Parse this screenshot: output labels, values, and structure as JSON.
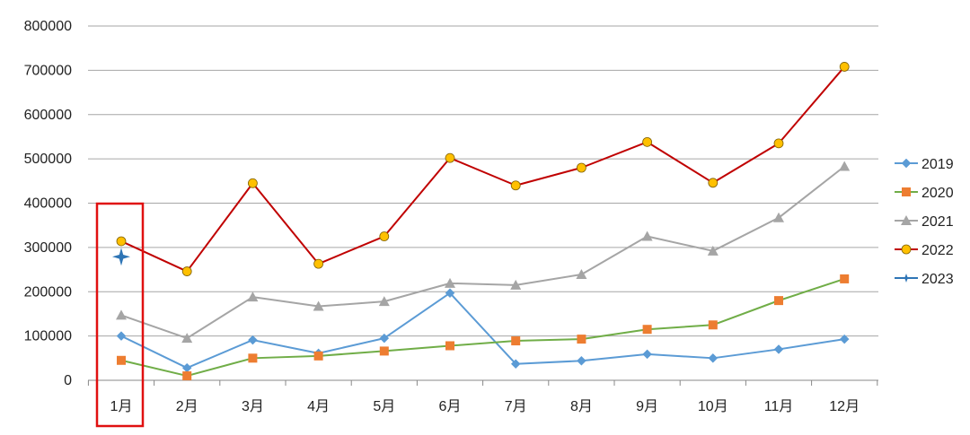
{
  "chart_data": {
    "type": "line",
    "categories": [
      "1月",
      "2月",
      "3月",
      "4月",
      "5月",
      "6月",
      "7月",
      "8月",
      "9月",
      "10月",
      "11月",
      "12月"
    ],
    "ylim": [
      0,
      800000
    ],
    "yticks": [
      0,
      100000,
      200000,
      300000,
      400000,
      500000,
      600000,
      700000,
      800000
    ],
    "ytick_labels": [
      "0",
      "100000",
      "200000",
      "300000",
      "400000",
      "500000",
      "600000",
      "700000",
      "800000"
    ],
    "grid": true,
    "legend_position": "right",
    "series": [
      {
        "name": "2019",
        "color": "#5b9bd5",
        "marker": "diamond",
        "values": [
          100000,
          28000,
          91000,
          61000,
          95000,
          197000,
          37000,
          44000,
          59000,
          50000,
          70000,
          93000
        ]
      },
      {
        "name": "2020",
        "color": "#70ad47",
        "marker": "square",
        "marker_color": "#ed7d31",
        "values": [
          45000,
          10000,
          50000,
          55000,
          66000,
          78000,
          89000,
          93000,
          115000,
          125000,
          180000,
          229000
        ]
      },
      {
        "name": "2021",
        "color": "#a5a5a5",
        "marker": "triangle",
        "values": [
          147000,
          95000,
          188000,
          167000,
          178000,
          219000,
          215000,
          239000,
          325000,
          292000,
          367000,
          483000
        ]
      },
      {
        "name": "2022",
        "color": "#c00000",
        "marker": "circle",
        "marker_color": "#ffc000",
        "values": [
          314000,
          246000,
          445000,
          263000,
          325000,
          502000,
          440000,
          480000,
          538000,
          446000,
          535000,
          708000
        ]
      },
      {
        "name": "2023",
        "color": "#2e75b6",
        "marker": "star",
        "values": [
          279000,
          null,
          null,
          null,
          null,
          null,
          null,
          null,
          null,
          null,
          null,
          null
        ]
      }
    ],
    "highlight": {
      "category": "1月",
      "color": "#e01010"
    }
  }
}
